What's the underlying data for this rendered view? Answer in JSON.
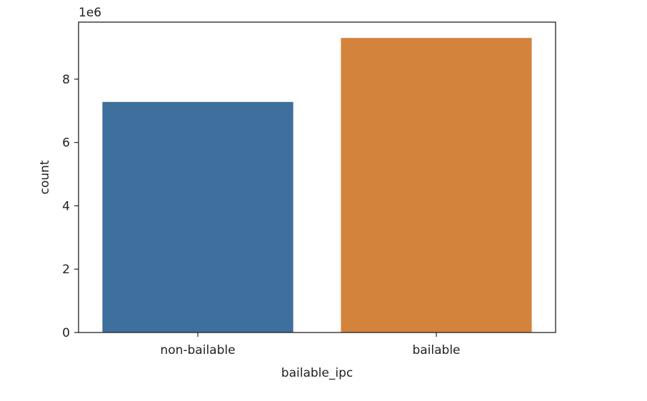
{
  "chart_data": {
    "type": "bar",
    "title": "",
    "xlabel": "bailable_ipc",
    "ylabel": "count",
    "y_offset_label": "1e6",
    "categories": [
      "non-bailable",
      "bailable"
    ],
    "values": [
      7280000,
      9300000
    ],
    "bar_colors": [
      "#3f6f9c",
      "#d4833c"
    ],
    "ylim": [
      0,
      9800000
    ],
    "yticks": [
      0,
      2000000,
      4000000,
      6000000,
      8000000
    ],
    "ytick_labels": [
      "0",
      "2",
      "4",
      "6",
      "8"
    ],
    "grid": false,
    "legend": "none"
  }
}
